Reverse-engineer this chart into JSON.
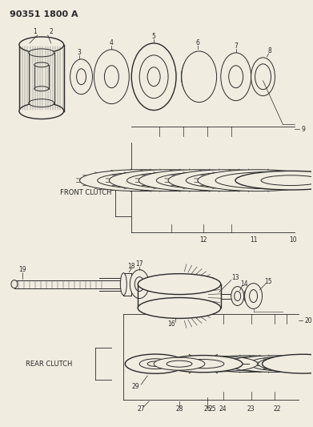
{
  "title": "90351 1800 A",
  "bg_color": "#f0ece0",
  "line_color": "#2a2a2a",
  "fig_width": 3.91,
  "fig_height": 5.33,
  "dpi": 100,
  "front_clutch_label": "FRONT CLUTCH",
  "rear_clutch_label": "REAR CLUTCH"
}
